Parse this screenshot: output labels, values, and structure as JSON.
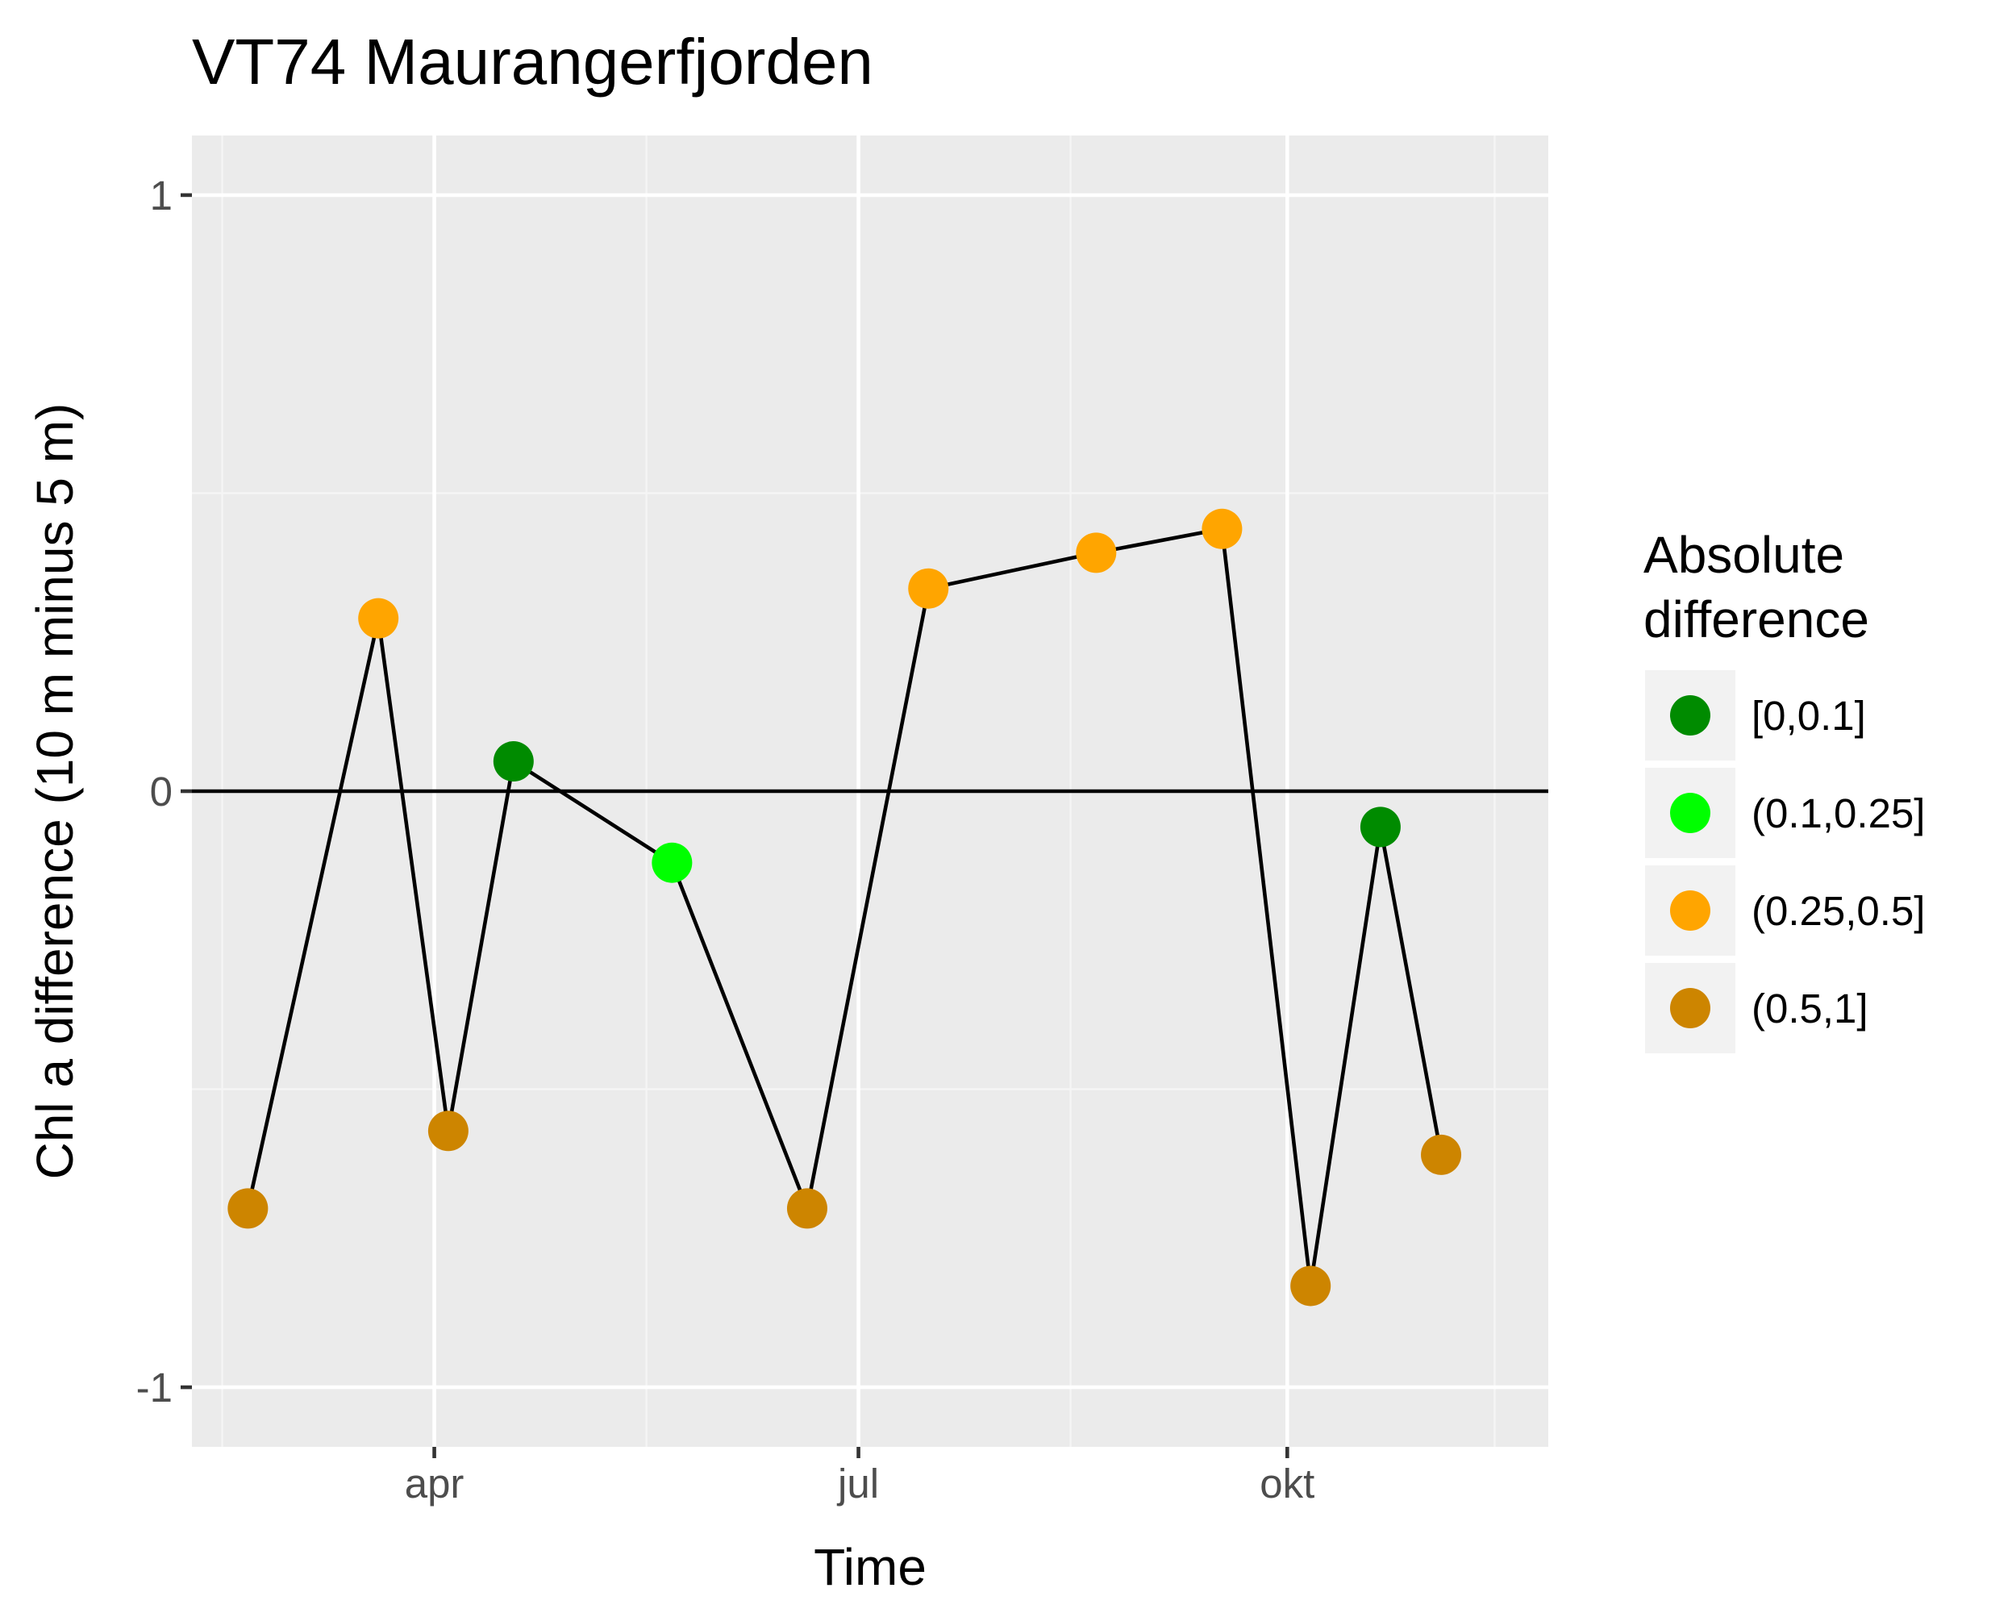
{
  "chart_data": {
    "type": "line",
    "title": "VT74 Maurangerfjorden",
    "xlabel": "Time",
    "ylabel": "Chl a difference (10 m minus 5 m)",
    "x_ticks": [
      {
        "label": "apr",
        "date": "2017-04-01"
      },
      {
        "label": "jul",
        "date": "2017-07-01"
      },
      {
        "label": "okt",
        "date": "2017-10-01"
      }
    ],
    "xlim": [
      "2017-02-08",
      "2017-11-26"
    ],
    "ylim": [
      -1.1,
      1.1
    ],
    "y_ticks": [
      -1,
      0,
      1
    ],
    "y_tick_labels": [
      "-1",
      "0",
      "1"
    ],
    "reference_line_y": 0,
    "grid": true,
    "legend": {
      "title": [
        "Absolute",
        "difference"
      ],
      "position": "right",
      "entries": [
        {
          "label": "[0,0.1]",
          "color": "#008b00"
        },
        {
          "label": "(0.1,0.25]",
          "color": "#00ff00"
        },
        {
          "label": "(0.25,0.5]",
          "color": "#ffa500"
        },
        {
          "label": "(0.5,1]",
          "color": "#cd8500"
        }
      ]
    },
    "series": [
      {
        "points": [
          {
            "x": "2017-02-20",
            "y": -0.7,
            "class": "(0.5,1]"
          },
          {
            "x": "2017-03-20",
            "y": 0.29,
            "class": "(0.25,0.5]"
          },
          {
            "x": "2017-04-04",
            "y": -0.57,
            "class": "(0.5,1]"
          },
          {
            "x": "2017-04-18",
            "y": 0.05,
            "class": "[0,0.1]"
          },
          {
            "x": "2017-05-22",
            "y": -0.12,
            "class": "(0.1,0.25]"
          },
          {
            "x": "2017-06-20",
            "y": -0.7,
            "class": "(0.5,1]"
          },
          {
            "x": "2017-07-16",
            "y": 0.34,
            "class": "(0.25,0.5]"
          },
          {
            "x": "2017-08-21",
            "y": 0.4,
            "class": "(0.25,0.5]"
          },
          {
            "x": "2017-09-17",
            "y": 0.44,
            "class": "(0.25,0.5]"
          },
          {
            "x": "2017-10-06",
            "y": -0.83,
            "class": "(0.5,1]"
          },
          {
            "x": "2017-10-21",
            "y": -0.06,
            "class": "[0,0.1]"
          },
          {
            "x": "2017-11-03",
            "y": -0.61,
            "class": "(0.5,1]"
          }
        ]
      }
    ],
    "colors": {
      "panel_background": "#ebebeb",
      "grid_major": "#ffffff",
      "grid_minor": "#f5f5f5",
      "line": "#000000",
      "legend_key_background": "#f2f2f2"
    }
  }
}
